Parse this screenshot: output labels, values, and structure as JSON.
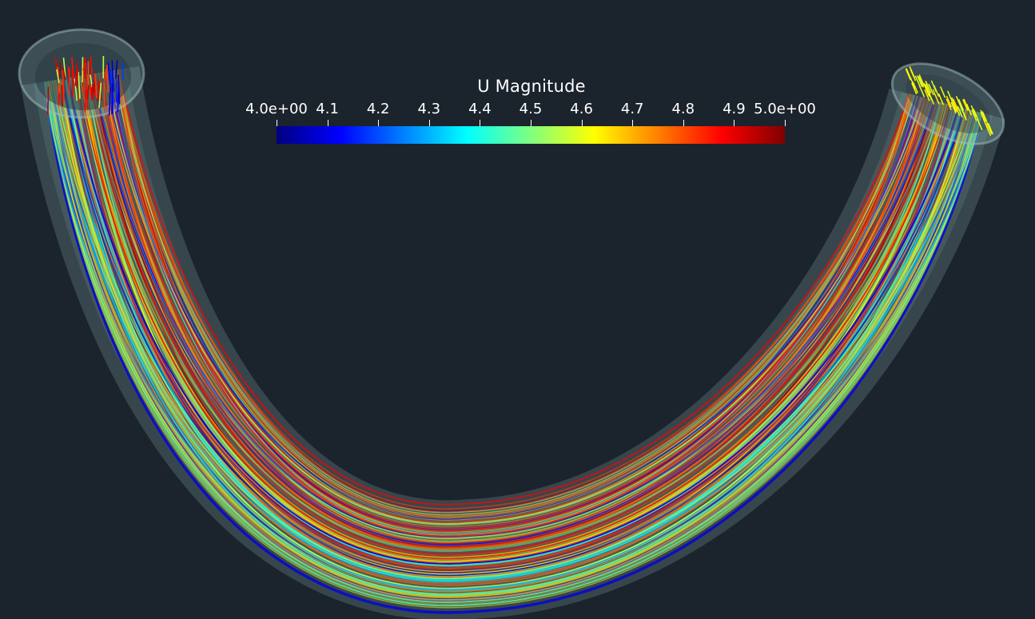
{
  "legend": {
    "title": "U Magnitude",
    "range": [
      4.0,
      5.0
    ],
    "ticks": [
      {
        "value": 4.0,
        "label": "4.0e+00"
      },
      {
        "value": 4.1,
        "label": "4.1"
      },
      {
        "value": 4.2,
        "label": "4.2"
      },
      {
        "value": 4.3,
        "label": "4.3"
      },
      {
        "value": 4.4,
        "label": "4.4"
      },
      {
        "value": 4.5,
        "label": "4.5"
      },
      {
        "value": 4.6,
        "label": "4.6"
      },
      {
        "value": 4.7,
        "label": "4.7"
      },
      {
        "value": 4.8,
        "label": "4.8"
      },
      {
        "value": 4.9,
        "label": "4.9"
      },
      {
        "value": 5.0,
        "label": "5.0e+00"
      }
    ],
    "colormap": [
      "#000080",
      "#0000ff",
      "#0080ff",
      "#00ffff",
      "#80ff80",
      "#ffff00",
      "#ff8000",
      "#ff0000",
      "#800000"
    ]
  },
  "colors": {
    "background": "#1b232c",
    "pipe_wall": "#8fb3b0"
  }
}
